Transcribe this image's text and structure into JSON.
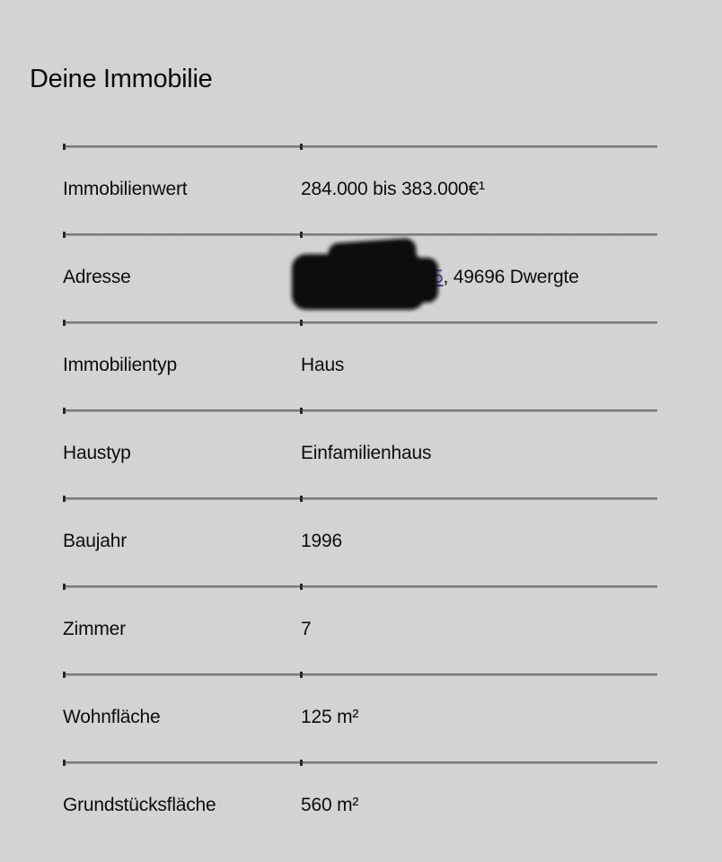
{
  "page": {
    "title": "Deine Immobilie",
    "colors": {
      "background": "#d3d3d3",
      "text": "#0d0d0d",
      "divider": "#7e7e7e",
      "divider_tick": "#2a2a2a",
      "link": "#3a44a5",
      "redaction": "#0a0a0a"
    }
  },
  "property": {
    "rows": [
      {
        "label": "Immobilienwert",
        "value": "284.000 bis 383.000€¹"
      },
      {
        "label": "Adresse",
        "redacted": true,
        "value_link": "5",
        "value_suffix": ", 49696 Dwergte"
      },
      {
        "label": "Immobilientyp",
        "value": "Haus"
      },
      {
        "label": "Haustyp",
        "value": "Einfamilienhaus"
      },
      {
        "label": "Baujahr",
        "value": "1996"
      },
      {
        "label": "Zimmer",
        "value": "7"
      },
      {
        "label": "Wohnfläche",
        "value": "125 m²"
      },
      {
        "label": "Grundstücksfläche",
        "value": "560 m²"
      }
    ]
  }
}
